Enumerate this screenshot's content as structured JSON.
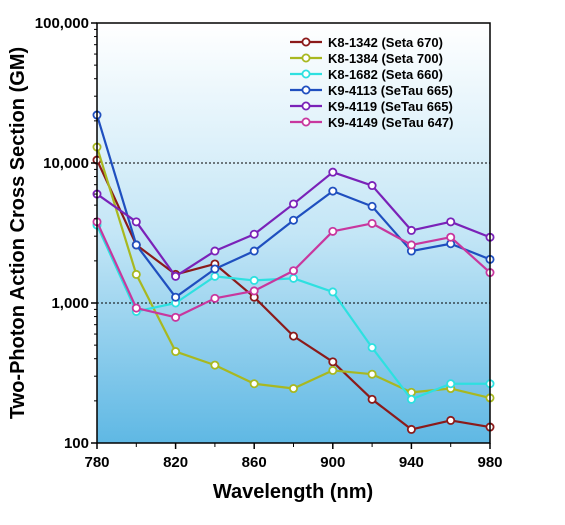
{
  "chart_data": {
    "type": "line",
    "title": "",
    "xlabel": "Wavelength (nm)",
    "ylabel": "Two-Photon Action Cross Section (GM)",
    "x_ticks": [
      "780",
      "820",
      "860",
      "900",
      "940",
      "980"
    ],
    "x_tick_values": [
      780,
      820,
      860,
      900,
      940,
      980
    ],
    "y_ticks": [
      "100",
      "1,000",
      "10,000",
      "100,000"
    ],
    "y_tick_values": [
      100,
      1000,
      10000,
      100000
    ],
    "xlim": [
      780,
      980
    ],
    "ylim": [
      100,
      100000
    ],
    "y_scale": "log",
    "grid": "horizontal dotted at 1,000 and 10,000",
    "legend_position": "top-right",
    "background": "vertical gradient, white at top to light blue at bottom",
    "x": [
      780,
      800,
      820,
      840,
      860,
      880,
      900,
      920,
      940,
      960,
      980
    ],
    "series": [
      {
        "name": "K8-1342 (Seta 670)",
        "color": "#8b1a1a",
        "values": [
          10500,
          2600,
          1600,
          1900,
          1100,
          580,
          380,
          205,
          125,
          145,
          130
        ]
      },
      {
        "name": "K8-1384 (Seta 700)",
        "color": "#a8b820",
        "values": [
          13000,
          1600,
          450,
          360,
          265,
          245,
          330,
          310,
          230,
          245,
          210
        ]
      },
      {
        "name": "K8-1682 (Seta 660)",
        "color": "#2ee0e0",
        "values": [
          3600,
          870,
          1000,
          1550,
          1450,
          1500,
          1200,
          480,
          205,
          265,
          265
        ]
      },
      {
        "name": "K9-4113 (SeTau 665)",
        "color": "#1f4fbf",
        "values": [
          22000,
          2600,
          1100,
          1750,
          2350,
          3900,
          6300,
          4900,
          2350,
          2650,
          2050
        ]
      },
      {
        "name": "K9-4119 (SeTau 665)",
        "color": "#7a22b8",
        "values": [
          6000,
          3800,
          1550,
          2350,
          3100,
          5100,
          8600,
          6900,
          3300,
          3800,
          2950
        ]
      },
      {
        "name": "K9-4149 (SeTau 647)",
        "color": "#c8379e",
        "values": [
          3800,
          920,
          790,
          1080,
          1220,
          1700,
          3250,
          3700,
          2600,
          2950,
          1650
        ]
      }
    ]
  }
}
